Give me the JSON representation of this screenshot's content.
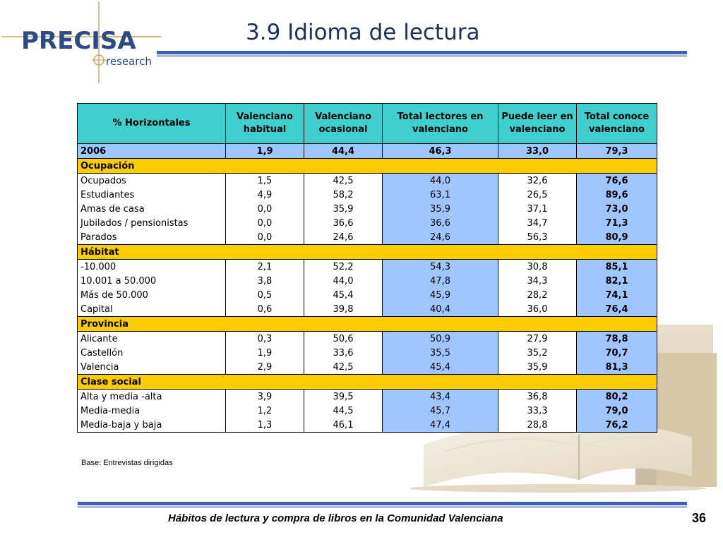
{
  "logo": {
    "main": "PRECISA",
    "sub": "research"
  },
  "title": "3.9 Idioma de lectura",
  "table": {
    "headers": [
      "% Horizontales",
      "Valenciano habitual",
      "Valenciano ocasional",
      "Total lectores en valenciano",
      "Puede leer en valenciano",
      "Total conoce valenciano"
    ],
    "total": [
      "2006",
      "1,9",
      "44,4",
      "46,3",
      "33,0",
      "79,3"
    ],
    "sections": [
      {
        "title": "Ocupación",
        "rows": [
          [
            "Ocupados",
            "1,5",
            "42,5",
            "44,0",
            "32,6",
            "76,6"
          ],
          [
            "Estudiantes",
            "4,9",
            "58,2",
            "63,1",
            "26,5",
            "89,6"
          ],
          [
            "Amas de casa",
            "0,0",
            "35,9",
            "35,9",
            "37,1",
            "73,0"
          ],
          [
            "Jubilados / pensionistas",
            "0,0",
            "36,6",
            "36,6",
            "34,7",
            "71,3"
          ],
          [
            "Parados",
            "0,0",
            "24,6",
            "24,6",
            "56,3",
            "80,9"
          ]
        ]
      },
      {
        "title": "Hábitat",
        "rows": [
          [
            "-10.000",
            "2,1",
            "52,2",
            "54,3",
            "30,8",
            "85,1"
          ],
          [
            "10.001 a 50.000",
            "3,8",
            "44,0",
            "47,8",
            "34,3",
            "82,1"
          ],
          [
            "Más de 50.000",
            "0,5",
            "45,4",
            "45,9",
            "28,2",
            "74,1"
          ],
          [
            "Capital",
            "0,6",
            "39,8",
            "40,4",
            "36,0",
            "76,4"
          ]
        ]
      },
      {
        "title": "Provincia",
        "rows": [
          [
            "Alicante",
            "0,3",
            "50,6",
            "50,9",
            "27,9",
            "78,8"
          ],
          [
            "Castellón",
            "1,9",
            "33,6",
            "35,5",
            "35,2",
            "70,7"
          ],
          [
            "Valencia",
            "2,9",
            "42,5",
            "45,4",
            "35,9",
            "81,3"
          ]
        ]
      },
      {
        "title": "Clase social",
        "rows": [
          [
            "Alta y media -alta",
            "3,9",
            "39,5",
            "43,4",
            "36,8",
            "80,2"
          ],
          [
            "Media-media",
            "1,2",
            "44,5",
            "45,7",
            "33,3",
            "79,0"
          ],
          [
            "Media-baja y baja",
            "1,3",
            "46,1",
            "47,4",
            "28,8",
            "76,2"
          ]
        ]
      }
    ]
  },
  "note": "Base: Entrevistas dirigidas",
  "footer": "Hábitos de lectura y compra de libros en la Comunidad Valenciana",
  "page_number": "36",
  "colors": {
    "header_bg": "#3fcfcf",
    "total_bg": "#a0c6ff",
    "section_bg": "#ffcc00",
    "highlight_col_bg": "#a0c6ff",
    "rule_color": "#3b63b3",
    "logo_color": "#2c4a86"
  }
}
